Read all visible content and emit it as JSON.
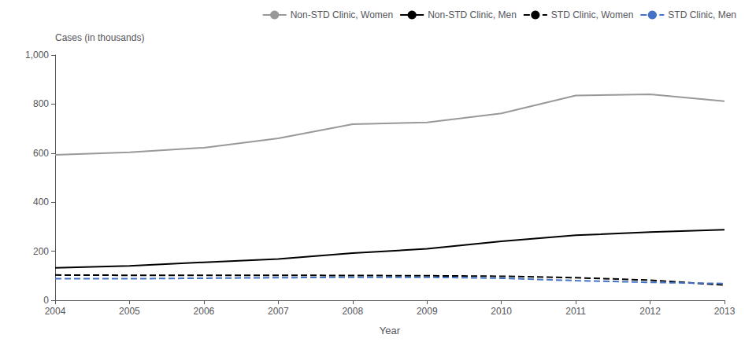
{
  "chart_data": {
    "type": "line",
    "xlabel": "Year",
    "ylabel": "Cases (in thousands)",
    "x": [
      2004,
      2005,
      2006,
      2007,
      2008,
      2009,
      2010,
      2011,
      2012,
      2013
    ],
    "xlim": [
      2004,
      2013
    ],
    "xticks": [
      2004,
      2005,
      2006,
      2007,
      2008,
      2009,
      2010,
      2011,
      2012,
      2013
    ],
    "ylim": [
      0,
      1000
    ],
    "yticks": [
      0,
      200,
      400,
      600,
      800,
      {
        "value": 1000,
        "label": "1,000"
      }
    ],
    "grid": false,
    "legend": "top",
    "series": [
      {
        "name": "Non-STD Clinic, Women",
        "color": "#999999",
        "line_style": "solid",
        "values": [
          593,
          603,
          622,
          660,
          718,
          725,
          762,
          835,
          840,
          812
        ]
      },
      {
        "name": "Non-STD Clinic, Men",
        "color": "#000000",
        "line_style": "solid",
        "values": [
          132,
          140,
          155,
          168,
          192,
          210,
          240,
          265,
          278,
          288
        ]
      },
      {
        "name": "STD Clinic, Women",
        "color": "#000000",
        "line_style": "dashed",
        "values": [
          103,
          102,
          102,
          102,
          101,
          100,
          98,
          92,
          82,
          62
        ]
      },
      {
        "name": "STD Clinic, Men",
        "color": "#4472c4",
        "line_style": "dashed",
        "values": [
          88,
          88,
          90,
          92,
          94,
          94,
          90,
          80,
          73,
          68
        ]
      }
    ]
  }
}
